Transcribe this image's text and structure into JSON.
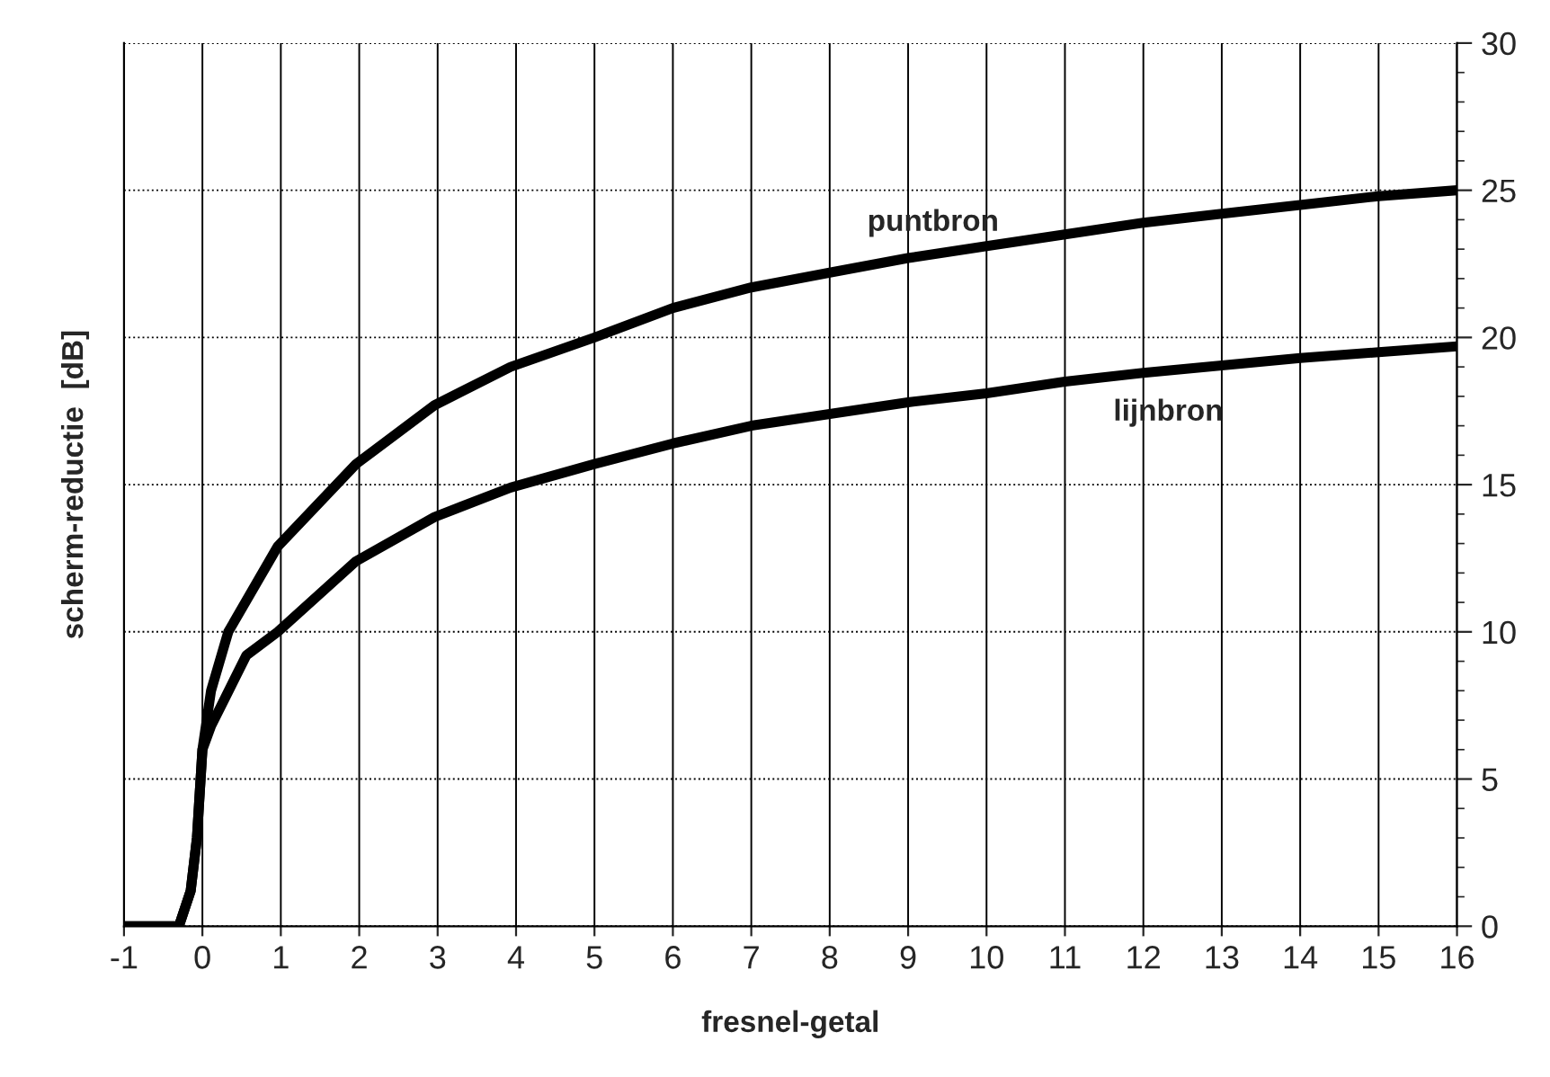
{
  "chart_data": {
    "type": "line",
    "xlabel": "fresnel-getal",
    "ylabel": "scherm-reductie  [dB]",
    "xlim": [
      -1,
      16
    ],
    "xticks": [
      -1,
      0,
      1,
      2,
      3,
      4,
      5,
      6,
      7,
      8,
      9,
      10,
      11,
      12,
      13,
      14,
      15,
      16
    ],
    "ylim": [
      0,
      30
    ],
    "yticks": [
      0,
      5,
      10,
      15,
      20,
      25,
      30
    ],
    "grid": true,
    "marker": "none",
    "line_style": "solid",
    "series": [
      {
        "name": "puntbron",
        "color": "#000000",
        "x": [
          -1,
          -0.3,
          -0.15,
          -0.07,
          0,
          0.11,
          0.33,
          0.96,
          1.96,
          2.96,
          3.93,
          5,
          6,
          7,
          8,
          9,
          10,
          11,
          12,
          13,
          14,
          15,
          16
        ],
        "values": [
          0,
          0,
          1.2,
          3.0,
          6.0,
          8.0,
          10.0,
          12.9,
          15.7,
          17.7,
          19.0,
          20.0,
          21.0,
          21.7,
          22.2,
          22.7,
          23.1,
          23.5,
          23.9,
          24.2,
          24.5,
          24.8,
          25.0
        ]
      },
      {
        "name": "lijnbron",
        "color": "#000000",
        "x": [
          -1,
          -0.3,
          -0.15,
          -0.07,
          0,
          0.11,
          0.56,
          0.96,
          1.96,
          2.96,
          3.93,
          5,
          6,
          7,
          8,
          9,
          10,
          11,
          12,
          13,
          14,
          15,
          16
        ],
        "values": [
          0,
          0,
          1.2,
          3.0,
          6.0,
          6.8,
          9.2,
          10.0,
          12.4,
          13.9,
          14.9,
          15.7,
          16.4,
          17.0,
          17.4,
          17.8,
          18.1,
          18.5,
          18.8,
          19.05,
          19.3,
          19.5,
          19.7
        ]
      }
    ]
  }
}
